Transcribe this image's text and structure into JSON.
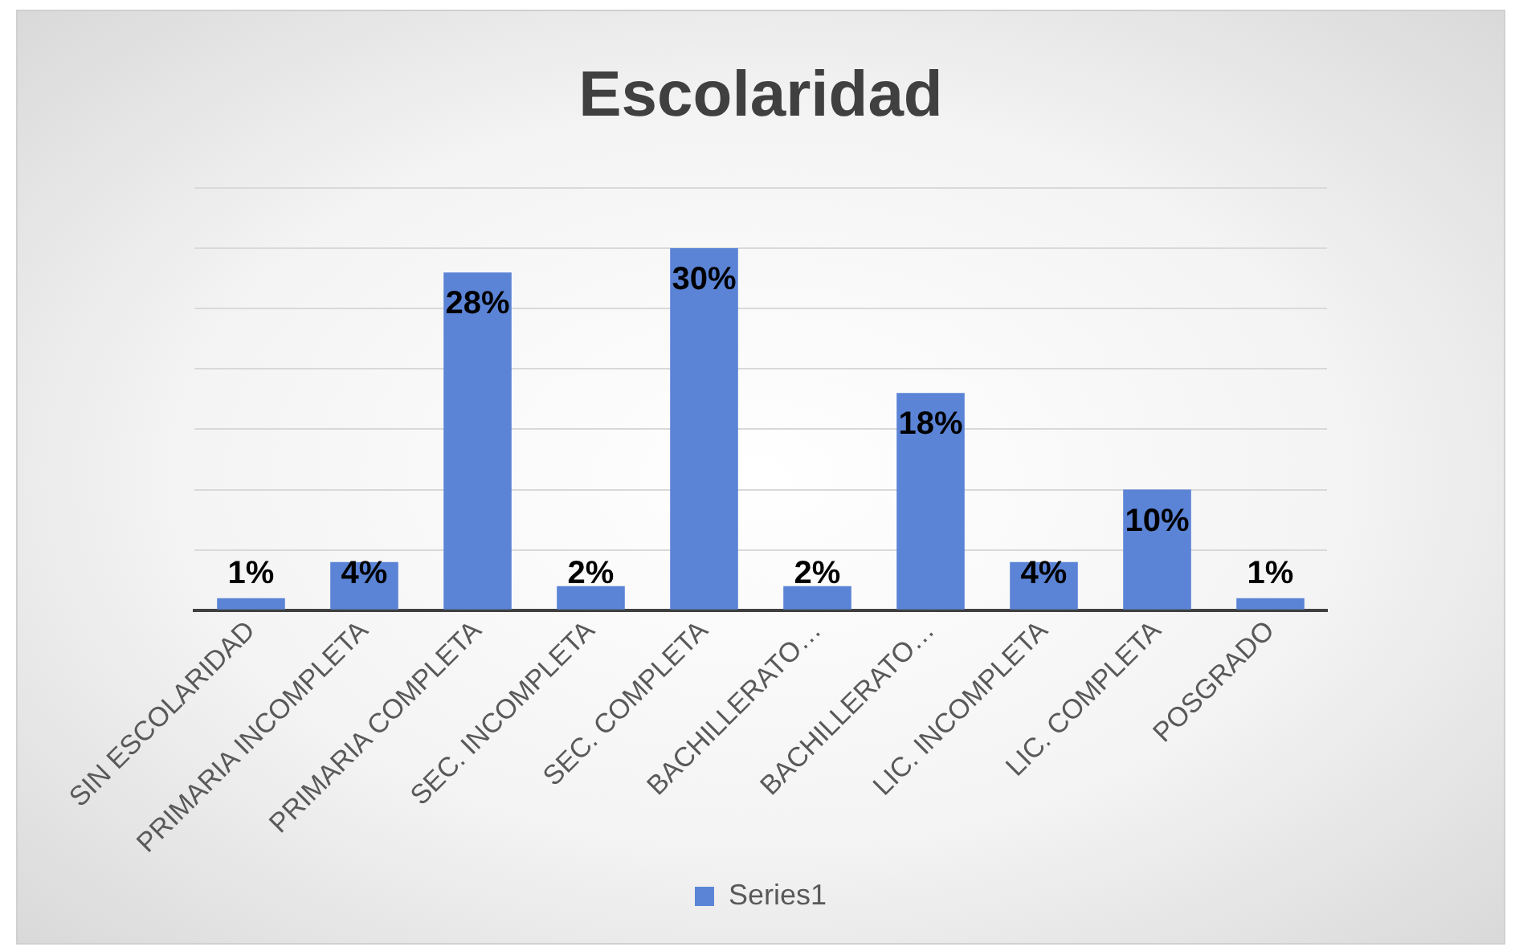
{
  "chart_data": {
    "type": "bar",
    "title": "Escolaridad",
    "categories": [
      "SIN ESCOLARIDAD",
      "PRIMARIA INCOMPLETA",
      "PRIMARIA COMPLETA",
      "SEC. INCOMPLETA",
      "SEC. COMPLETA",
      "BACHILLERATO…",
      "BACHILLERATO…",
      "LIC. INCOMPLETA",
      "LIC. COMPLETA",
      "POSGRADO"
    ],
    "series": [
      {
        "name": "Series1",
        "color": "#5b84d6",
        "values": [
          1,
          4,
          28,
          2,
          30,
          2,
          18,
          4,
          10,
          1
        ],
        "value_labels": [
          "1%",
          "4%",
          "28%",
          "2%",
          "30%",
          "2%",
          "18%",
          "4%",
          "10%",
          "1%"
        ]
      }
    ],
    "ylim": [
      0,
      35
    ],
    "yticks": [
      {
        "value": 0,
        "label": null
      },
      {
        "value": 5,
        "label": null
      },
      {
        "value": 10,
        "label": null
      },
      {
        "value": 15,
        "label": null
      },
      {
        "value": 20,
        "label": null
      },
      {
        "value": 25,
        "label": null
      },
      {
        "value": 30,
        "label": null
      },
      {
        "value": 35,
        "label": null
      }
    ],
    "grid": "y",
    "legend": "bottom",
    "tick_labels": "x"
  }
}
